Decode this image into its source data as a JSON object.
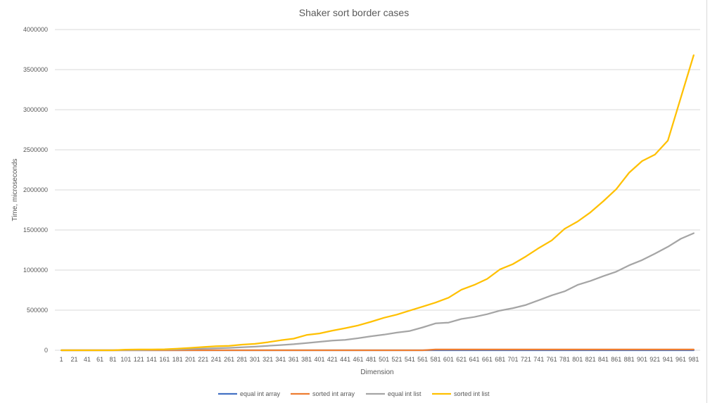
{
  "chart_data": {
    "type": "line",
    "title": "Shaker sort border cases",
    "xlabel": "Dimension",
    "ylabel": "Time, microseconds",
    "ylim": [
      0,
      4000000
    ],
    "yticks": [
      "0",
      "500000",
      "1000000",
      "1500000",
      "2000000",
      "2500000",
      "3000000",
      "3500000",
      "4000000"
    ],
    "grid": true,
    "legend_position": "bottom",
    "categories": [
      "1",
      "21",
      "41",
      "61",
      "81",
      "101",
      "121",
      "141",
      "161",
      "181",
      "201",
      "221",
      "241",
      "261",
      "281",
      "301",
      "321",
      "341",
      "361",
      "381",
      "401",
      "421",
      "441",
      "461",
      "481",
      "501",
      "521",
      "541",
      "561",
      "581",
      "601",
      "621",
      "641",
      "661",
      "681",
      "701",
      "721",
      "741",
      "761",
      "781",
      "801",
      "821",
      "841",
      "861",
      "881",
      "901",
      "921",
      "941",
      "961",
      "981"
    ],
    "series": [
      {
        "name": "equal int array",
        "color": "#4472C4",
        "values": [
          0,
          0,
          0,
          0,
          0,
          0,
          0,
          0,
          0,
          0,
          0,
          0,
          0,
          0,
          0,
          0,
          0,
          0,
          0,
          0,
          0,
          0,
          0,
          0,
          0,
          0,
          0,
          0,
          0,
          0,
          0,
          0,
          0,
          0,
          0,
          0,
          0,
          0,
          0,
          0,
          0,
          0,
          0,
          0,
          0,
          0,
          0,
          0,
          0,
          0
        ]
      },
      {
        "name": "sorted int array",
        "color": "#ED7D31",
        "values": [
          0,
          0,
          0,
          0,
          0,
          0,
          0,
          0,
          0,
          0,
          0,
          0,
          0,
          0,
          0,
          0,
          0,
          0,
          0,
          0,
          0,
          0,
          0,
          0,
          0,
          0,
          0,
          0,
          0,
          10000,
          10000,
          10000,
          10000,
          10000,
          10000,
          10000,
          10000,
          10000,
          10000,
          10000,
          10000,
          10000,
          10000,
          10000,
          10000,
          10000,
          10000,
          10000,
          10000,
          10000
        ]
      },
      {
        "name": "equal int list",
        "color": "#A5A5A5",
        "values": [
          0,
          0,
          0,
          0,
          0,
          2000,
          3000,
          5000,
          8000,
          10000,
          15000,
          20000,
          25000,
          30000,
          38000,
          45000,
          55000,
          65000,
          75000,
          90000,
          105000,
          120000,
          130000,
          150000,
          175000,
          195000,
          220000,
          240000,
          285000,
          335000,
          345000,
          390000,
          415000,
          450000,
          495000,
          525000,
          565000,
          625000,
          685000,
          735000,
          815000,
          865000,
          925000,
          980000,
          1060000,
          1125000,
          1205000,
          1290000,
          1390000,
          1460000
        ]
      },
      {
        "name": "sorted int list",
        "color": "#FFC000",
        "values": [
          0,
          0,
          0,
          0,
          0,
          8000,
          10000,
          10000,
          12000,
          20000,
          30000,
          40000,
          50000,
          55000,
          70000,
          80000,
          100000,
          125000,
          145000,
          190000,
          210000,
          245000,
          275000,
          310000,
          355000,
          405000,
          445000,
          495000,
          545000,
          595000,
          655000,
          755000,
          815000,
          890000,
          1010000,
          1075000,
          1170000,
          1275000,
          1370000,
          1515000,
          1605000,
          1720000,
          1860000,
          2010000,
          2215000,
          2360000,
          2440000,
          2615000,
          3150000,
          3680000
        ]
      }
    ]
  }
}
